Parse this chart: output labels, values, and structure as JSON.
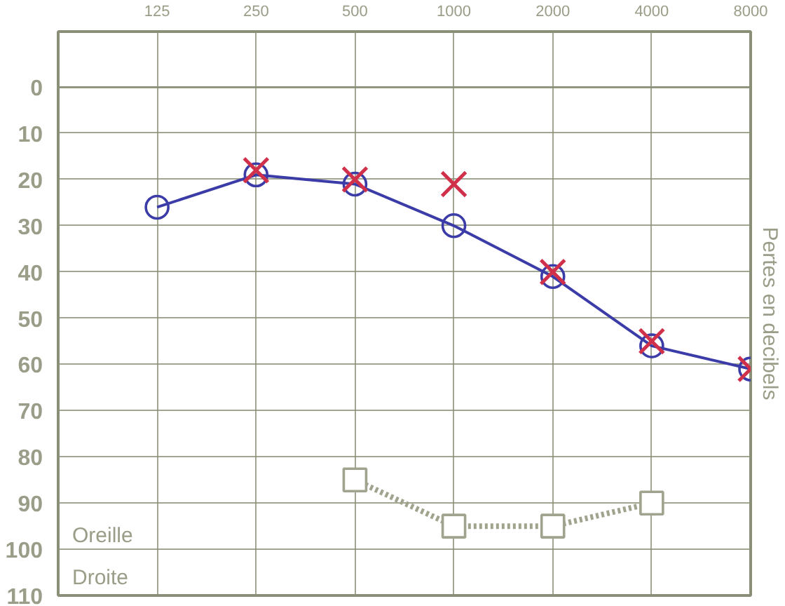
{
  "chart_data": {
    "type": "line",
    "ylabel": "Pertes en decibels",
    "annotations": [
      "Oreille",
      "Droite"
    ],
    "log": "x",
    "xlim": [
      62.5,
      8000
    ],
    "xticks": [
      125,
      250,
      500,
      1000,
      2000,
      4000,
      8000
    ],
    "ylim": [
      110,
      -12
    ],
    "yticks": [
      0,
      10,
      20,
      30,
      40,
      50,
      60,
      70,
      80,
      90,
      100,
      110
    ],
    "grid": true,
    "ref_lines": [
      {
        "axis": "y",
        "value": 0,
        "color": "#8a9078"
      }
    ],
    "series": [
      {
        "color": "#3c3ca8",
        "marker": "circle",
        "line_style": "solid",
        "x": [
          125,
          250,
          500,
          1000,
          2000,
          4000,
          8000
        ],
        "values": [
          26,
          19,
          21,
          30,
          41,
          56,
          61
        ]
      },
      {
        "type": "scatter",
        "color": "#d0304a",
        "marker": "cross",
        "x": [
          250,
          500,
          1000,
          2000,
          4000,
          8000
        ],
        "values": [
          18,
          20,
          21,
          40,
          55,
          61
        ]
      },
      {
        "color": "#a0a48e",
        "marker": "square",
        "line_style": "dotted",
        "x": [
          500,
          1000,
          2000,
          4000
        ],
        "values": [
          85,
          95,
          95,
          90
        ]
      }
    ]
  }
}
